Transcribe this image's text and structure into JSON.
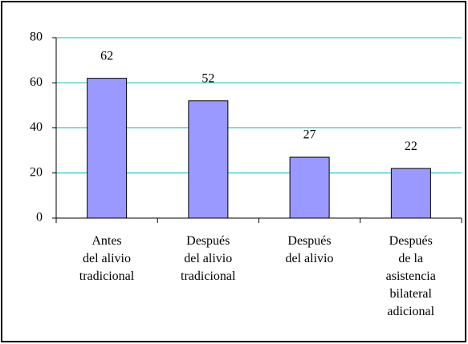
{
  "chart_data": {
    "type": "bar",
    "categories": [
      "Antes\ndel alivio\ntradicional",
      "Después\ndel alivio\ntradicional",
      "Después\ndel alivio",
      "Después\nde la\nasistencia\nbilateral\nadicional"
    ],
    "values": [
      62,
      52,
      27,
      22
    ],
    "color": "#9999ff",
    "ylim": [
      0,
      80
    ],
    "yticks": [
      0,
      20,
      40,
      60,
      80
    ],
    "grid": true,
    "grid_color": "#00c0c0"
  }
}
